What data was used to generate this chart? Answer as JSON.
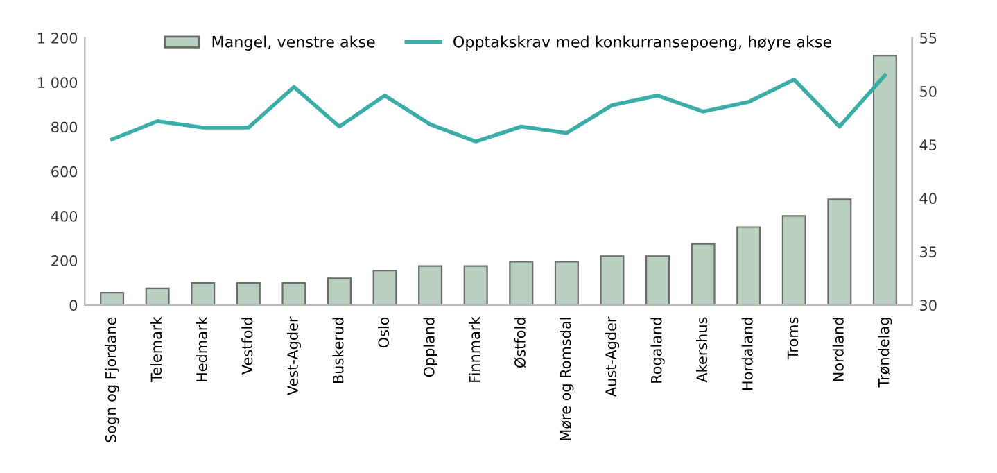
{
  "chart_data": {
    "type": "bar",
    "categories": [
      "Sogn og Fjordane",
      "Telemark",
      "Hedmark",
      "Vestfold",
      "Vest-Agder",
      "Buskerud",
      "Oslo",
      "Oppland",
      "Finnmark",
      "Østfold",
      "Møre og Romsdal",
      "Aust-Agder",
      "Rogaland",
      "Akershus",
      "Hordaland",
      "Troms",
      "Nordland",
      "Trøndelag"
    ],
    "series": [
      {
        "name": "Mangel, venstre akse",
        "color": "#b9cfbf",
        "values": [
          55,
          75,
          100,
          100,
          100,
          120,
          155,
          175,
          175,
          195,
          195,
          220,
          220,
          275,
          350,
          400,
          475,
          1120
        ]
      },
      {
        "name": "Opptakskrav med konkurransepoeng, høyre akse",
        "type": "line",
        "axis": "y2",
        "color": "#3aada8",
        "values": [
          45.5,
          47.2,
          46.6,
          46.6,
          50.4,
          46.7,
          49.6,
          46.9,
          45.3,
          46.7,
          46.1,
          48.7,
          49.6,
          48.1,
          49.0,
          51.1,
          46.7,
          51.5
        ]
      }
    ],
    "ylim": [
      0,
      1200
    ],
    "yticks": [
      {
        "value": 0,
        "label": "0"
      },
      {
        "value": 200,
        "label": "200"
      },
      {
        "value": 400,
        "label": "400"
      },
      {
        "value": 600,
        "label": "600"
      },
      {
        "value": 800,
        "label": "800"
      },
      {
        "value": 1000,
        "label": "1 000"
      },
      {
        "value": 1200,
        "label": "1 200"
      }
    ],
    "y2lim": [
      30,
      55
    ],
    "y2ticks": [
      30,
      35,
      40,
      45,
      50,
      55
    ],
    "legend": "top",
    "grid": false,
    "marker": "none",
    "line_style": "solid"
  }
}
